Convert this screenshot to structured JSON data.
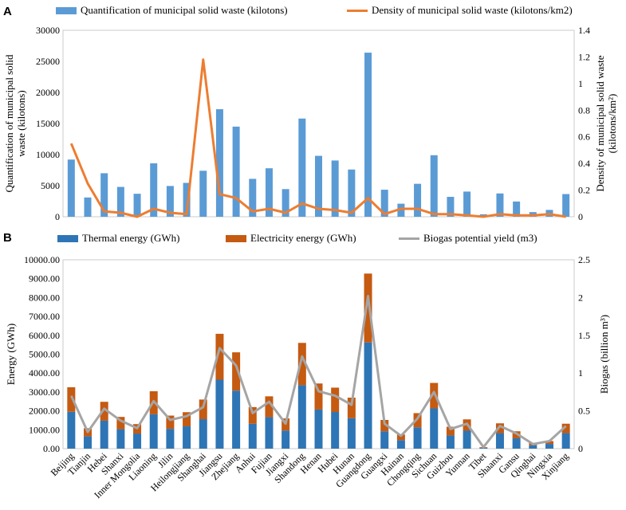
{
  "panels": {
    "a": {
      "label": "A"
    },
    "b": {
      "label": "B"
    }
  },
  "chart_data": [
    {
      "type": "bar",
      "panel": "A",
      "categories": [
        "Beijing",
        "Tianjin",
        "Hebei",
        "Shanxi",
        "Inner Mongolia",
        "Liaoning",
        "Jilin",
        "Heilongjiang",
        "Shanghai",
        "Jiangsu",
        "Zhejiang",
        "Anhui",
        "Fujian",
        "Jiangxi",
        "Shandong",
        "Henan",
        "Hubei",
        "Hunan",
        "Guangdong",
        "Guangxi",
        "Hainan",
        "Chongqing",
        "Sichuan",
        "Guizhou",
        "Yunnan",
        "Tibet",
        "Shaanxi",
        "Gansu",
        "Qinghai",
        "Ningxia",
        "Xinjiang"
      ],
      "series": [
        {
          "name": "Quantification of municipal solid waste (kilotons)",
          "chart": "bar",
          "axis": "left",
          "color": "#5B9BD5",
          "values": [
            9200,
            3100,
            7000,
            4800,
            3700,
            8600,
            4950,
            5450,
            7400,
            17300,
            14500,
            6100,
            7800,
            4450,
            15800,
            9800,
            9050,
            7600,
            26400,
            4350,
            2100,
            5300,
            9900,
            3200,
            4050,
            400,
            3750,
            2450,
            750,
            1100,
            3650
          ]
        },
        {
          "name": "Density of municipal solid waste (kilotons/km2)",
          "chart": "line",
          "axis": "right",
          "color": "#ED7D31",
          "values": [
            0.55,
            0.25,
            0.04,
            0.03,
            0.0,
            0.06,
            0.03,
            0.02,
            1.18,
            0.17,
            0.14,
            0.04,
            0.06,
            0.03,
            0.1,
            0.06,
            0.05,
            0.03,
            0.14,
            0.02,
            0.06,
            0.06,
            0.02,
            0.02,
            0.01,
            0.0,
            0.02,
            0.01,
            0.01,
            0.02,
            0.0
          ]
        }
      ],
      "yleft": {
        "label": "Quantification of municipal solid waste (kilotons)",
        "ylim": [
          0,
          30000
        ],
        "ticks": [
          "0",
          "5000",
          "10000",
          "15000",
          "20000",
          "25000",
          "30000"
        ]
      },
      "yright": {
        "label": "Density of municipal solid waste (kilotons/km²)",
        "ylim": [
          0,
          1.4
        ],
        "ticks": [
          "0",
          "0.2",
          "0.4",
          "0.6",
          "0.8",
          "1",
          "1.2",
          "1.4"
        ]
      },
      "legend": "top"
    },
    {
      "type": "bar",
      "panel": "B",
      "stacked": true,
      "categories": [
        "Beijing",
        "Tianjin",
        "Hebei",
        "Shanxi",
        "Inner Mongolia",
        "Liaoning",
        "Jilin",
        "Heilongjiang",
        "Shanghai",
        "Jiangsu",
        "Zhejiang",
        "Anhui",
        "Fujian",
        "Jiangxi",
        "Shandong",
        "Henan",
        "Hubei",
        "Hunan",
        "Guangdong",
        "Guangxi",
        "Hainan",
        "Chongqing",
        "Sichuan",
        "Guizhou",
        "Yunnan",
        "Tibet",
        "Shaanxi",
        "Gansu",
        "Qinghai",
        "Ningxia",
        "Xinjiang"
      ],
      "series": [
        {
          "name": "Thermal energy (GWh)",
          "chart": "bar",
          "axis": "left",
          "color": "#2E75B6",
          "values": [
            1950,
            650,
            1480,
            1030,
            800,
            1820,
            1050,
            1180,
            1560,
            3650,
            3070,
            1320,
            1670,
            960,
            3360,
            2070,
            1940,
            1610,
            5620,
            920,
            450,
            1130,
            2130,
            700,
            950,
            50,
            820,
            550,
            180,
            250,
            820
          ]
        },
        {
          "name": "Electricity energy (GWh)",
          "chart": "bar",
          "axis": "left",
          "color": "#C55A11",
          "values": [
            1300,
            430,
            1000,
            650,
            500,
            1220,
            700,
            750,
            1040,
            2430,
            2030,
            880,
            1100,
            640,
            2240,
            1380,
            1290,
            1090,
            3650,
            600,
            300,
            750,
            1350,
            460,
            600,
            30,
            520,
            370,
            120,
            150,
            500
          ]
        },
        {
          "name": "Biogas potential yield (m3)",
          "chart": "line",
          "axis": "right",
          "color": "#A5A5A5",
          "values": [
            0.7,
            0.22,
            0.53,
            0.37,
            0.27,
            0.63,
            0.38,
            0.43,
            0.55,
            1.33,
            1.1,
            0.47,
            0.62,
            0.33,
            1.22,
            0.76,
            0.7,
            0.58,
            2.02,
            0.33,
            0.17,
            0.4,
            0.75,
            0.26,
            0.33,
            0.02,
            0.3,
            0.2,
            0.06,
            0.1,
            0.3
          ]
        }
      ],
      "yleft": {
        "label": "Energy (GWh)",
        "ylim": [
          0,
          10000
        ],
        "ticks": [
          "0.00",
          "1000.00",
          "2000.00",
          "3000.00",
          "4000.00",
          "5000.00",
          "6000.00",
          "7000.00",
          "8000.00",
          "9000.00",
          "10000.00"
        ]
      },
      "yright": {
        "label": "Biogas (billion m³)",
        "ylim": [
          0,
          2.5
        ],
        "ticks": [
          "0",
          "0.5",
          "1",
          "1.5",
          "2",
          "2.5"
        ]
      },
      "legend": "top"
    }
  ]
}
